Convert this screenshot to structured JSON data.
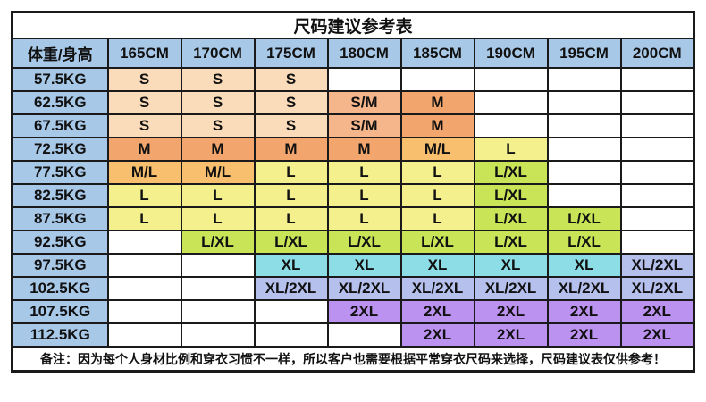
{
  "title": "尺码建议参考表",
  "corner_header": "体重/身高",
  "height_columns": [
    "165CM",
    "170CM",
    "175CM",
    "180CM",
    "185CM",
    "190CM",
    "195CM",
    "200CM"
  ],
  "rows": [
    {
      "weight": "57.5KG",
      "sizes": [
        "S",
        "S",
        "S",
        "",
        "",
        "",
        "",
        ""
      ]
    },
    {
      "weight": "62.5KG",
      "sizes": [
        "S",
        "S",
        "S",
        "S/M",
        "M",
        "",
        "",
        ""
      ]
    },
    {
      "weight": "67.5KG",
      "sizes": [
        "S",
        "S",
        "S",
        "S/M",
        "M",
        "",
        "",
        ""
      ]
    },
    {
      "weight": "72.5KG",
      "sizes": [
        "M",
        "M",
        "M",
        "M",
        "M/L",
        "L",
        "",
        ""
      ]
    },
    {
      "weight": "77.5KG",
      "sizes": [
        "M/L",
        "M/L",
        "L",
        "L",
        "L",
        "L/XL",
        "",
        ""
      ]
    },
    {
      "weight": "82.5KG",
      "sizes": [
        "L",
        "L",
        "L",
        "L",
        "L",
        "L/XL",
        "",
        ""
      ]
    },
    {
      "weight": "87.5KG",
      "sizes": [
        "L",
        "L",
        "L",
        "L",
        "L",
        "L/XL",
        "L/XL",
        ""
      ]
    },
    {
      "weight": "92.5KG",
      "sizes": [
        "",
        "L/XL",
        "L/XL",
        "L/XL",
        "L/XL",
        "L/XL",
        "L/XL",
        ""
      ]
    },
    {
      "weight": "97.5KG",
      "sizes": [
        "",
        "",
        "XL",
        "XL",
        "XL",
        "XL",
        "XL",
        "XL/2XL"
      ]
    },
    {
      "weight": "102.5KG",
      "sizes": [
        "",
        "",
        "XL/2XL",
        "XL/2XL",
        "XL/2XL",
        "XL/2XL",
        "XL/2XL",
        "XL/2XL"
      ]
    },
    {
      "weight": "107.5KG",
      "sizes": [
        "",
        "",
        "",
        "2XL",
        "2XL",
        "2XL",
        "2XL",
        "2XL"
      ]
    },
    {
      "weight": "112.5KG",
      "sizes": [
        "",
        "",
        "",
        "",
        "2XL",
        "2XL",
        "2XL",
        "2XL"
      ]
    }
  ],
  "size_colors": {
    "S": "#fbdcba",
    "S/M": "#f5b68c",
    "M": "#f2a56d",
    "M/L": "#f8c06e",
    "L": "#f4f08d",
    "L/XL": "#c9e456",
    "XL": "#8cdde6",
    "XL/2XL": "#b5c0ed",
    "2XL": "#bc92f0"
  },
  "header_color": "#a8c8e8",
  "empty_cell_color": "#ffffff",
  "border_color": "#1a1a1a",
  "note": "备注：因为每个人身材比例和穿衣习惯不一样，所以客户也需要根据平常穿衣尺码来选择，尺码建议表仅供参考！"
}
